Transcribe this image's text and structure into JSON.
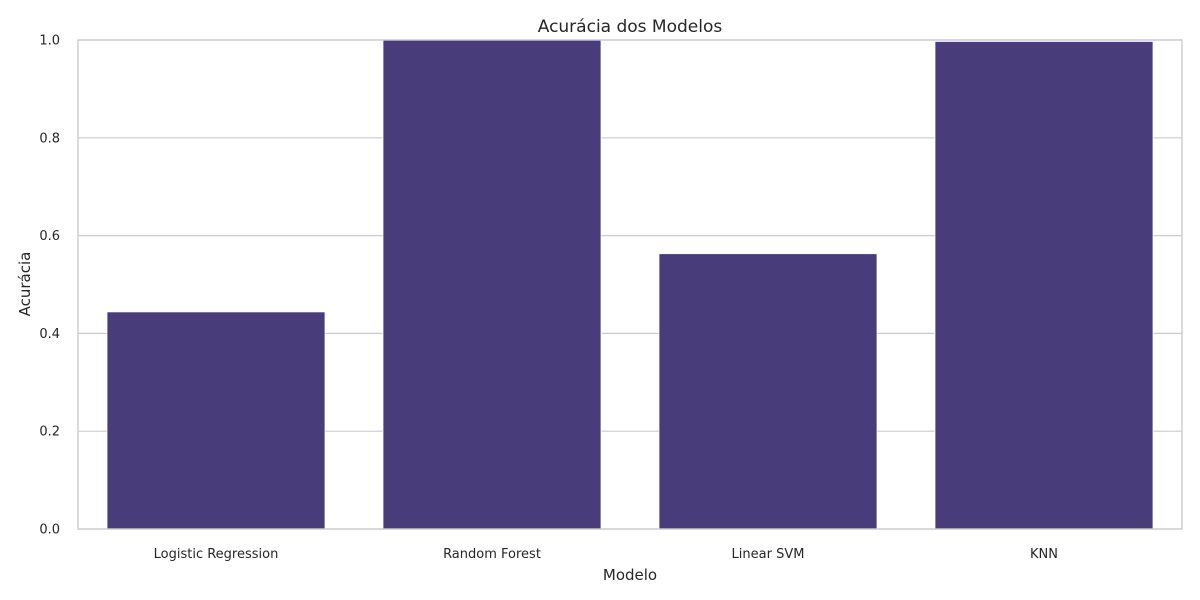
{
  "chart_data": {
    "type": "bar",
    "title": "Acurácia dos Modelos",
    "xlabel": "Modelo",
    "ylabel": "Acurácia",
    "categories": [
      "Logistic Regression",
      "Random Forest",
      "Linear SVM",
      "KNN"
    ],
    "values": [
      0.444,
      1.0,
      0.563,
      0.997
    ],
    "ylim": [
      0,
      1.0
    ],
    "yticks": [
      "0.0",
      "0.2",
      "0.4",
      "0.6",
      "0.8",
      "1.0"
    ],
    "grid": true,
    "legend": "none",
    "colors": {
      "bar": "#483d7a",
      "grid": "#cccccc",
      "text": "#262626"
    }
  }
}
